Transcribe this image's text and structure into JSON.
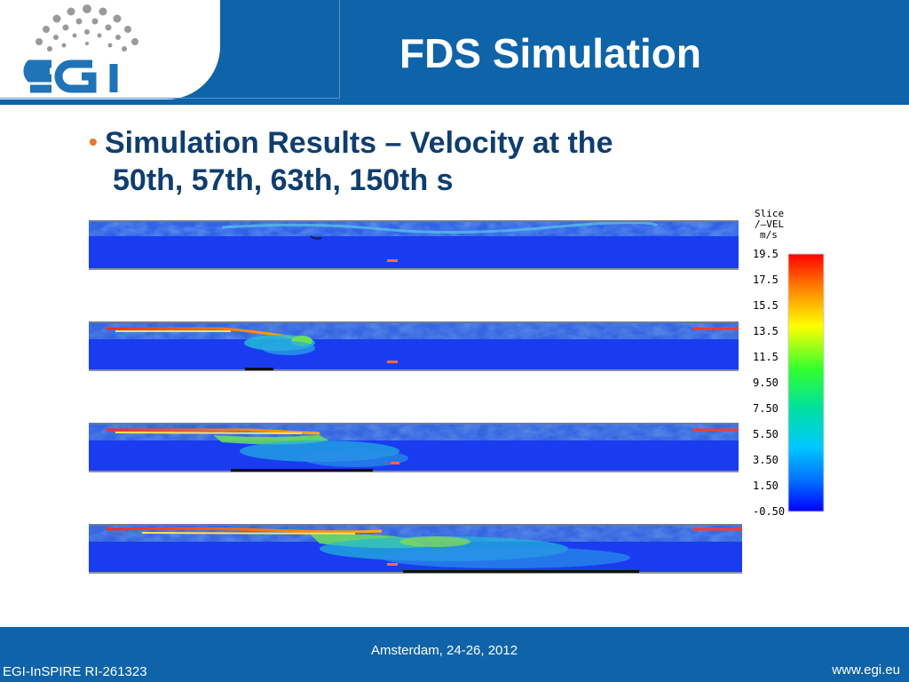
{
  "header": {
    "title": "FDS Simulation",
    "logo_text": "egi"
  },
  "content": {
    "bullet_line1": "Simulation Results – Velocity at the",
    "bullet_line2": "50th, 57th, 63th, 150th s"
  },
  "colorbar": {
    "title_line1": "Slice",
    "title_line2": "/–VEL",
    "title_line3": "m/s",
    "ticks": [
      "19.5",
      "17.5",
      "15.5",
      "13.5",
      "11.5",
      "9.50",
      "7.50",
      "5.50",
      "3.50",
      "1.50",
      "-0.50"
    ]
  },
  "footer": {
    "center": "Amsterdam, 24-26, 2012",
    "left": "EGI-InSPIRE RI-261323",
    "right": "www.egi.eu"
  },
  "colors": {
    "header_bg": "#0f63a8",
    "title_text": "#ffffff",
    "bullet_text": "#0f3e6e",
    "bullet_dot": "#e8762d"
  }
}
